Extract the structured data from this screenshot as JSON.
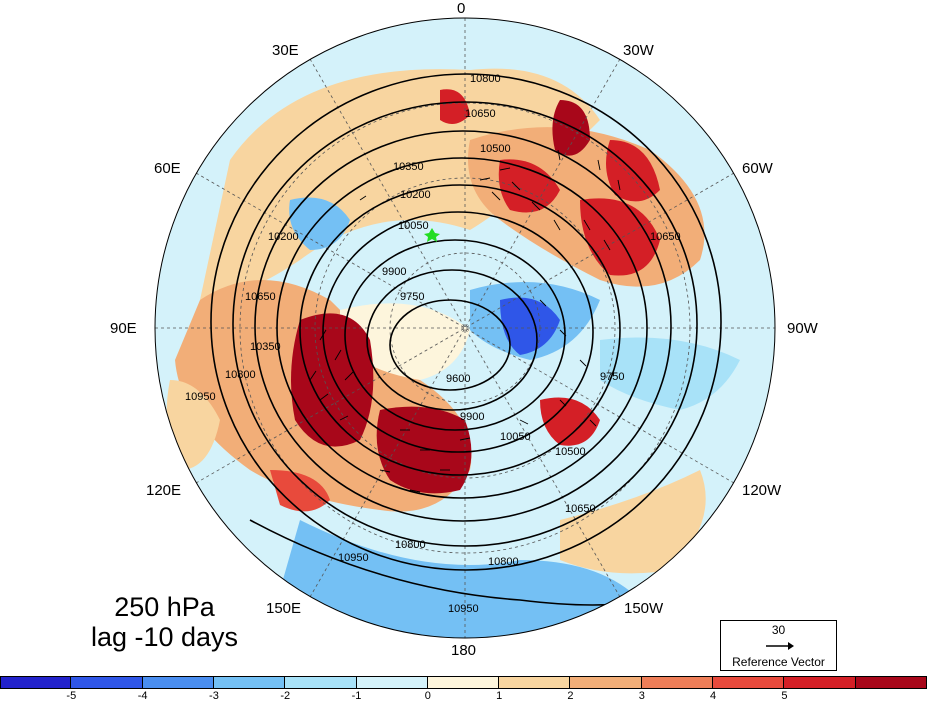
{
  "map": {
    "projection": "north polar stereographic",
    "center_lon_top": "0",
    "longitude_labels": {
      "top": "0",
      "top_right_1": "30W",
      "top_right_2": "60W",
      "right": "90W",
      "bottom_right_1": "120W",
      "bottom_right_2": "150W",
      "bottom": "180",
      "bottom_left_1": "150E",
      "bottom_left_2": "120E",
      "left": "90E",
      "top_left_1": "60E",
      "top_left_2": "30E"
    },
    "contour_labels": [
      "10800",
      "10650",
      "10500",
      "10350",
      "10200",
      "10050",
      "9900",
      "9750",
      "9600",
      "10950",
      "10800",
      "10650",
      "10500",
      "10350",
      "10200",
      "10050",
      "9900",
      "9750",
      "10950",
      "10800",
      "10650",
      "10950",
      "10800",
      "10650"
    ],
    "marker_color": "#22dd22",
    "field": "geopotential height (contours) with shaded anomaly and wave-activity vectors"
  },
  "title": {
    "line1": "250 hPa",
    "line2": "lag -10 days"
  },
  "reference_vector": {
    "magnitude": "30",
    "caption": "Reference Vector"
  },
  "colorbar": {
    "colors": [
      "#2222cc",
      "#2f56e8",
      "#4a8ef0",
      "#74c0f4",
      "#a8e2f8",
      "#d4f2fa",
      "#fdf5dc",
      "#f8d5a0",
      "#f2ae78",
      "#ee7e58",
      "#e84a3c",
      "#d41f26",
      "#a8071a"
    ],
    "tick_labels": [
      "-5",
      "-4",
      "-3",
      "-2",
      "-1",
      "0",
      "1",
      "2",
      "3",
      "4",
      "5"
    ]
  }
}
